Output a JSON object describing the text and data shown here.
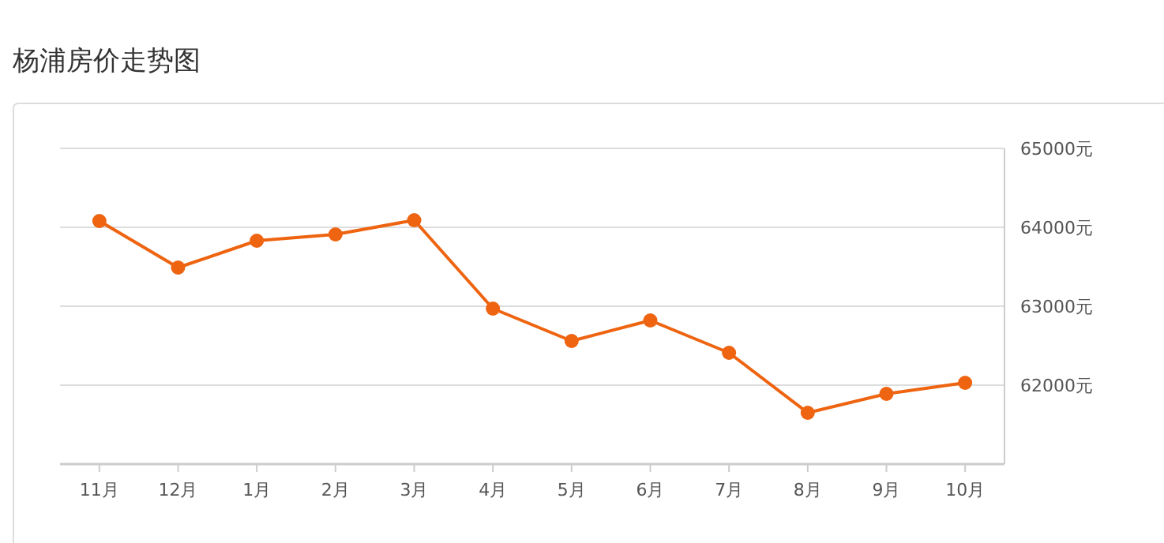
{
  "chart_data": {
    "type": "line",
    "title": "杨浦房价走势图",
    "categories": [
      "11月",
      "12月",
      "1月",
      "2月",
      "3月",
      "4月",
      "5月",
      "6月",
      "7月",
      "8月",
      "9月",
      "10月"
    ],
    "series": [
      {
        "color": "#ee6410",
        "values": [
          64080,
          63490,
          63830,
          63910,
          64090,
          62970,
          62560,
          62820,
          62410,
          61650,
          61890,
          62030
        ]
      }
    ],
    "ylim": [
      61000,
      65000
    ],
    "yticks": [
      {
        "value": 62000,
        "label": "62000元"
      },
      {
        "value": 63000,
        "label": "63000元"
      },
      {
        "value": 64000,
        "label": "64000元"
      },
      {
        "value": 65000,
        "label": "65000元"
      }
    ],
    "grid": "y",
    "marker": "circle",
    "line_style": "solid"
  }
}
